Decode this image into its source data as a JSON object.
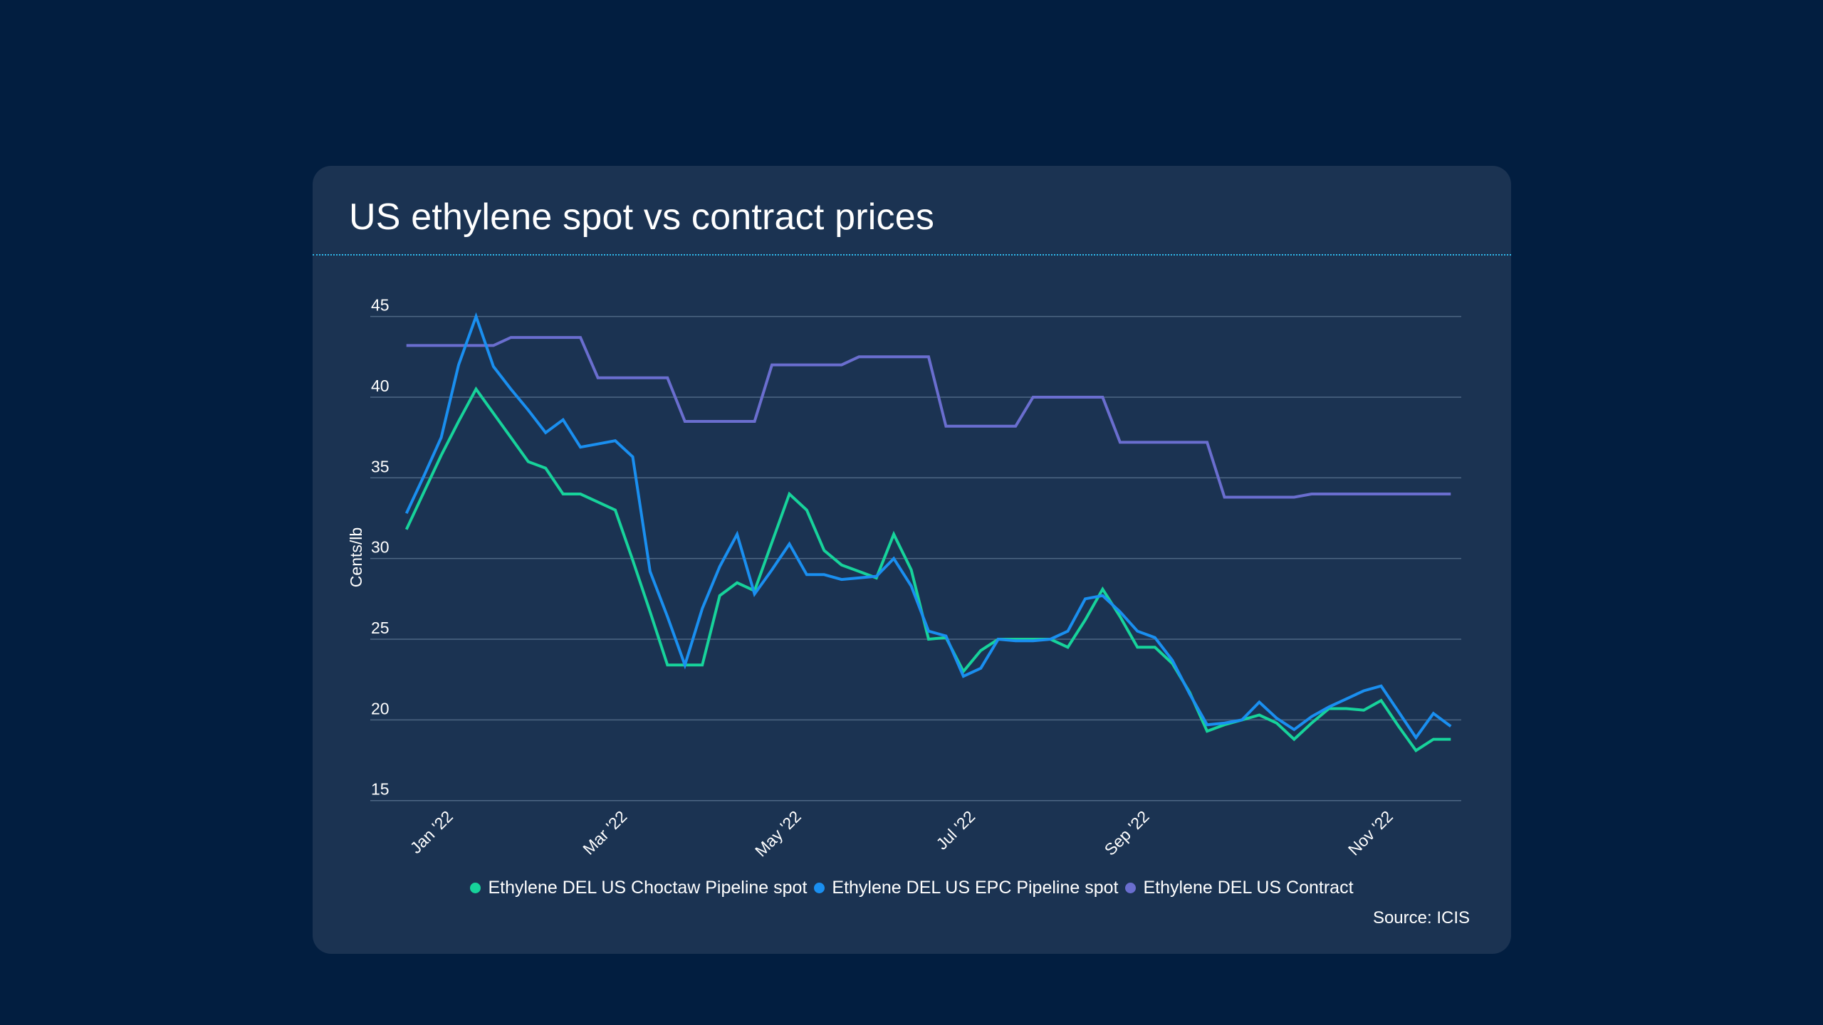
{
  "page": {
    "background": "#021e40",
    "card_background": "#1b3352"
  },
  "chart_data": {
    "type": "line",
    "title": "US ethylene spot vs contract prices",
    "xlabel": "",
    "ylabel": "Cents/lb",
    "ylim": [
      15,
      45
    ],
    "yticks": [
      15,
      20,
      25,
      30,
      35,
      40,
      45
    ],
    "grid": true,
    "x_tick_labels": [
      {
        "label": "Jan '22",
        "index": 2
      },
      {
        "label": "Mar '22",
        "index": 12
      },
      {
        "label": "May '22",
        "index": 22
      },
      {
        "label": "Jul '22",
        "index": 32
      },
      {
        "label": "Sep '22",
        "index": 42
      },
      {
        "label": "Nov '22",
        "index": 56
      }
    ],
    "point_count": 61,
    "legend_position": "bottom-center",
    "series": [
      {
        "name": "Ethylene DEL US Choctaw Pipeline spot",
        "color": "#17d39b",
        "values": [
          31.8,
          34.1,
          36.4,
          38.5,
          40.5,
          39.0,
          37.5,
          36.0,
          35.6,
          34.0,
          34.0,
          33.5,
          33.0,
          29.9,
          26.7,
          23.4,
          23.4,
          23.4,
          27.7,
          28.5,
          28.0,
          31.0,
          34.0,
          33.0,
          30.5,
          29.6,
          29.2,
          28.8,
          31.5,
          29.3,
          25.0,
          25.1,
          23.0,
          24.3,
          25.0,
          25.0,
          25.0,
          25.0,
          24.5,
          26.2,
          28.1,
          26.4,
          24.5,
          24.5,
          23.5,
          21.7,
          19.3,
          19.7,
          20.0,
          20.3,
          19.8,
          18.8,
          19.8,
          20.7,
          20.7,
          20.6,
          21.2,
          19.6,
          18.1,
          18.8,
          18.8
        ]
      },
      {
        "name": "Ethylene DEL US EPC Pipeline spot",
        "color": "#1a8ff0",
        "values": [
          32.8,
          35.1,
          37.5,
          42.0,
          45.0,
          41.9,
          40.5,
          39.2,
          37.8,
          38.6,
          36.9,
          37.1,
          37.3,
          36.3,
          29.2,
          26.4,
          23.4,
          26.9,
          29.5,
          31.5,
          27.8,
          29.3,
          30.9,
          29.0,
          29.0,
          28.7,
          28.8,
          28.9,
          30.0,
          28.3,
          25.5,
          25.2,
          22.7,
          23.2,
          25.0,
          24.9,
          24.9,
          25.0,
          25.5,
          27.5,
          27.7,
          26.7,
          25.5,
          25.1,
          23.7,
          21.6,
          19.7,
          19.8,
          20.0,
          21.1,
          20.1,
          19.4,
          20.2,
          20.8,
          21.3,
          21.8,
          22.1,
          20.5,
          18.9,
          20.4,
          19.6
        ]
      },
      {
        "name": "Ethylene DEL US Contract",
        "color": "#6a6ecf",
        "values": [
          43.2,
          43.2,
          43.2,
          43.2,
          43.2,
          43.2,
          43.7,
          43.7,
          43.7,
          43.7,
          43.7,
          41.2,
          41.2,
          41.2,
          41.2,
          41.2,
          38.5,
          38.5,
          38.5,
          38.5,
          38.5,
          42.0,
          42.0,
          42.0,
          42.0,
          42.0,
          42.5,
          42.5,
          42.5,
          42.5,
          42.5,
          38.2,
          38.2,
          38.2,
          38.2,
          38.2,
          40.0,
          40.0,
          40.0,
          40.0,
          40.0,
          37.2,
          37.2,
          37.2,
          37.2,
          37.2,
          37.2,
          33.8,
          33.8,
          33.8,
          33.8,
          33.8,
          34.0,
          34.0,
          34.0,
          34.0,
          34.0,
          34.0,
          34.0,
          34.0,
          34.0
        ]
      }
    ],
    "source": "Source: ICIS"
  }
}
